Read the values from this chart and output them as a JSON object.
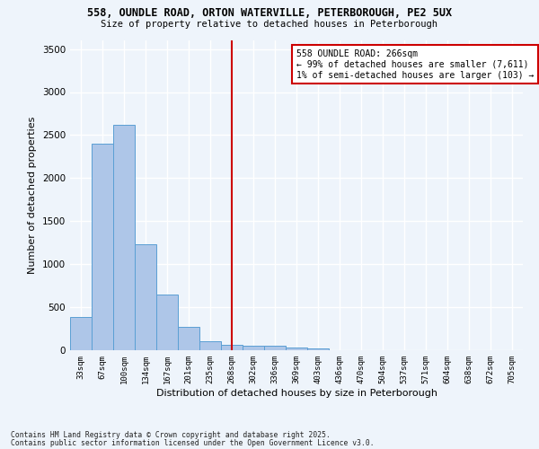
{
  "title1": "558, OUNDLE ROAD, ORTON WATERVILLE, PETERBOROUGH, PE2 5UX",
  "title2": "Size of property relative to detached houses in Peterborough",
  "xlabel": "Distribution of detached houses by size in Peterborough",
  "ylabel": "Number of detached properties",
  "categories": [
    "33sqm",
    "67sqm",
    "100sqm",
    "134sqm",
    "167sqm",
    "201sqm",
    "235sqm",
    "268sqm",
    "302sqm",
    "336sqm",
    "369sqm",
    "403sqm",
    "436sqm",
    "470sqm",
    "504sqm",
    "537sqm",
    "571sqm",
    "604sqm",
    "638sqm",
    "672sqm",
    "705sqm"
  ],
  "values": [
    390,
    2400,
    2620,
    1230,
    650,
    270,
    100,
    60,
    55,
    50,
    30,
    20,
    0,
    0,
    0,
    0,
    0,
    0,
    0,
    0,
    0
  ],
  "bar_color": "#aec6e8",
  "bar_edge_color": "#5a9fd4",
  "vline_x": 7,
  "vline_color": "#cc0000",
  "annotation_text": "558 OUNDLE ROAD: 266sqm\n← 99% of detached houses are smaller (7,611)\n1% of semi-detached houses are larger (103) →",
  "annotation_box_color": "#cc0000",
  "background_color": "#eef4fb",
  "grid_color": "#ffffff",
  "ylim": [
    0,
    3600
  ],
  "yticks": [
    0,
    500,
    1000,
    1500,
    2000,
    2500,
    3000,
    3500
  ],
  "footer1": "Contains HM Land Registry data © Crown copyright and database right 2025.",
  "footer2": "Contains public sector information licensed under the Open Government Licence v3.0."
}
